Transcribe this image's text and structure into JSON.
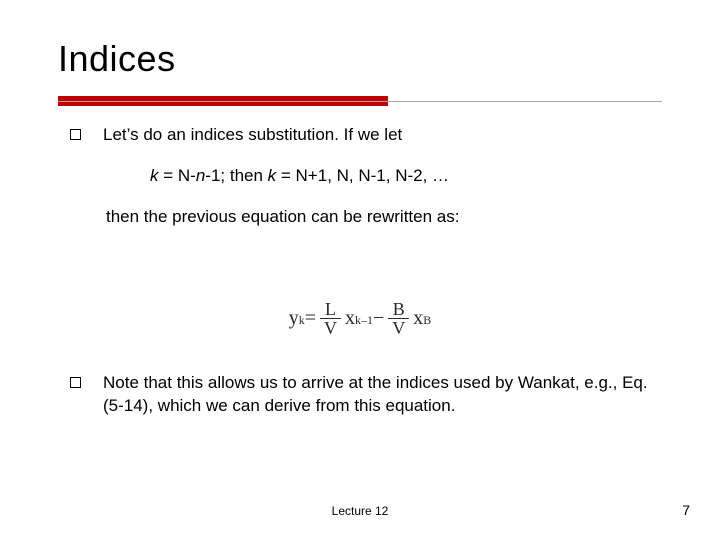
{
  "title": "Indices",
  "accent_bar_color": "#c00000",
  "rule_color": "#a6a6a6",
  "bullet1": "Let’s do an indices substitution. If we let",
  "subst_line_prefix_italic": "k",
  "subst_line_mid1": " = N-",
  "subst_line_n_italic": "n",
  "subst_line_mid2": "-1; then ",
  "subst_line_k2_italic": "k",
  "subst_line_tail": " = N+1, N, N-1, N-2, …",
  "cont": "then the previous equation can be rewritten as:",
  "equation": {
    "lhs_base": "y",
    "lhs_sub": "k",
    "eq": " = ",
    "frac1_num": "L",
    "frac1_den": "V",
    "term1_base": " x",
    "term1_sub": "k–1",
    "minus": " − ",
    "frac2_num": "B",
    "frac2_den": "V",
    "term2_base": " x",
    "term2_sub": "B"
  },
  "bullet2": "Note that this allows us to arrive at the indices used by Wankat, e.g., Eq. (5-14), which we can derive from this equation.",
  "footer_center": "Lecture 12",
  "footer_page": "7"
}
